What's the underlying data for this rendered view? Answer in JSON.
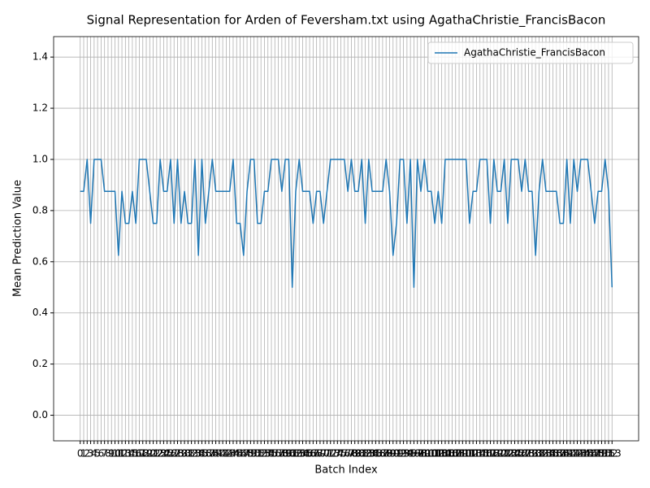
{
  "chart_data": {
    "type": "line",
    "title": "Signal Representation for Arden of Feversham.txt using AgathaChristie_FrancisBacon",
    "x_label": "Batch Index",
    "y_label": "Mean Prediction Value",
    "x": [
      0,
      1,
      2,
      3,
      4,
      5,
      6,
      7,
      8,
      9,
      10,
      11,
      12,
      13,
      14,
      15,
      16,
      17,
      18,
      19,
      20,
      21,
      22,
      23,
      24,
      25,
      26,
      27,
      28,
      29,
      30,
      31,
      32,
      33,
      34,
      35,
      36,
      37,
      38,
      39,
      40,
      41,
      42,
      43,
      44,
      45,
      46,
      47,
      48,
      49,
      50,
      51,
      52,
      53,
      54,
      55,
      56,
      57,
      58,
      59,
      60,
      61,
      62,
      63,
      64,
      65,
      66,
      67,
      68,
      69,
      70,
      71,
      72,
      73,
      74,
      75,
      76,
      77,
      78,
      79,
      80,
      81,
      82,
      83,
      84,
      85,
      86,
      87,
      88,
      89,
      90,
      91,
      92,
      93,
      94,
      95,
      96,
      97,
      98,
      99,
      100,
      101,
      102,
      103,
      104,
      105,
      106,
      107,
      108,
      109,
      110,
      111,
      112,
      113,
      114,
      115,
      116,
      117,
      118,
      119,
      120,
      121,
      122,
      123,
      124,
      125,
      126,
      127,
      128,
      129,
      130,
      131,
      132,
      133,
      134,
      135,
      136,
      137,
      138,
      139,
      140,
      141,
      142,
      143,
      144,
      145,
      146,
      147,
      148,
      149,
      150,
      151,
      152,
      153
    ],
    "series": [
      {
        "name": "AgathaChristie_FrancisBacon",
        "color": "#1f77b4",
        "values": [
          0.875,
          0.875,
          1,
          0.75,
          1,
          1,
          1,
          0.875,
          0.875,
          0.875,
          0.875,
          0.625,
          0.875,
          0.75,
          0.75,
          0.875,
          0.75,
          1,
          1,
          1,
          0.875,
          0.75,
          0.75,
          1,
          0.875,
          0.875,
          1,
          0.75,
          1,
          0.75,
          0.875,
          0.75,
          0.75,
          1,
          0.625,
          1,
          0.75,
          0.875,
          1,
          0.875,
          0.875,
          0.875,
          0.875,
          0.875,
          1,
          0.75,
          0.75,
          0.625,
          0.875,
          1,
          1,
          0.75,
          0.75,
          0.875,
          0.875,
          1,
          1,
          1,
          0.875,
          1,
          1,
          0.5,
          0.875,
          1,
          0.875,
          0.875,
          0.875,
          0.75,
          0.875,
          0.875,
          0.75,
          0.875,
          1,
          1,
          1,
          1,
          1,
          0.875,
          1,
          0.875,
          0.875,
          1,
          0.75,
          1,
          0.875,
          0.875,
          0.875,
          0.875,
          1,
          0.875,
          0.625,
          0.75,
          1,
          1,
          0.75,
          1,
          0.5,
          1,
          0.875,
          1,
          0.875,
          0.875,
          0.75,
          0.875,
          0.75,
          1,
          1,
          1,
          1,
          1,
          1,
          1,
          0.75,
          0.875,
          0.875,
          1,
          1,
          1,
          0.75,
          1,
          0.875,
          0.875,
          1,
          0.75,
          1,
          1,
          1,
          0.875,
          1,
          0.875,
          0.875,
          0.625,
          0.875,
          1,
          0.875,
          0.875,
          0.875,
          0.875,
          0.75,
          0.75,
          1,
          0.75,
          1,
          0.875,
          1,
          1,
          1,
          0.875,
          0.75,
          0.875,
          0.875,
          1,
          0.875,
          0.5
        ]
      }
    ],
    "xlim": [
      -7.65,
      160.65
    ],
    "xticks": [
      0,
      1,
      2,
      3,
      4,
      5,
      6,
      7,
      8,
      9,
      10,
      11,
      12,
      13,
      14,
      15,
      16,
      17,
      18,
      19,
      20,
      21,
      22,
      23,
      24,
      25,
      26,
      27,
      28,
      29,
      30,
      31,
      32,
      33,
      34,
      35,
      36,
      37,
      38,
      39,
      40,
      41,
      42,
      43,
      44,
      45,
      46,
      47,
      48,
      49,
      50,
      51,
      52,
      53,
      54,
      55,
      56,
      57,
      58,
      59,
      60,
      61,
      62,
      63,
      64,
      65,
      66,
      67,
      68,
      69,
      70,
      71,
      72,
      73,
      74,
      75,
      76,
      77,
      78,
      79,
      80,
      81,
      82,
      83,
      84,
      85,
      86,
      87,
      88,
      89,
      90,
      91,
      92,
      93,
      94,
      95,
      96,
      97,
      98,
      99,
      100,
      101,
      102,
      103,
      104,
      105,
      106,
      107,
      108,
      109,
      110,
      111,
      112,
      113,
      114,
      115,
      116,
      117,
      118,
      119,
      120,
      121,
      122,
      123,
      124,
      125,
      126,
      127,
      128,
      129,
      130,
      131,
      132,
      133,
      134,
      135,
      136,
      137,
      138,
      139,
      140,
      141,
      142,
      143,
      144,
      145,
      146,
      147,
      148,
      149,
      150,
      151,
      152,
      153
    ],
    "ylim": [
      -0.1,
      1.48
    ],
    "yticks": [
      {
        "value": 0,
        "label": "0.0"
      },
      0.2,
      0.4,
      0.6,
      0.8,
      {
        "value": 1,
        "label": "1.0"
      },
      1.2,
      1.4
    ],
    "grid": true,
    "legend": "upper right"
  }
}
